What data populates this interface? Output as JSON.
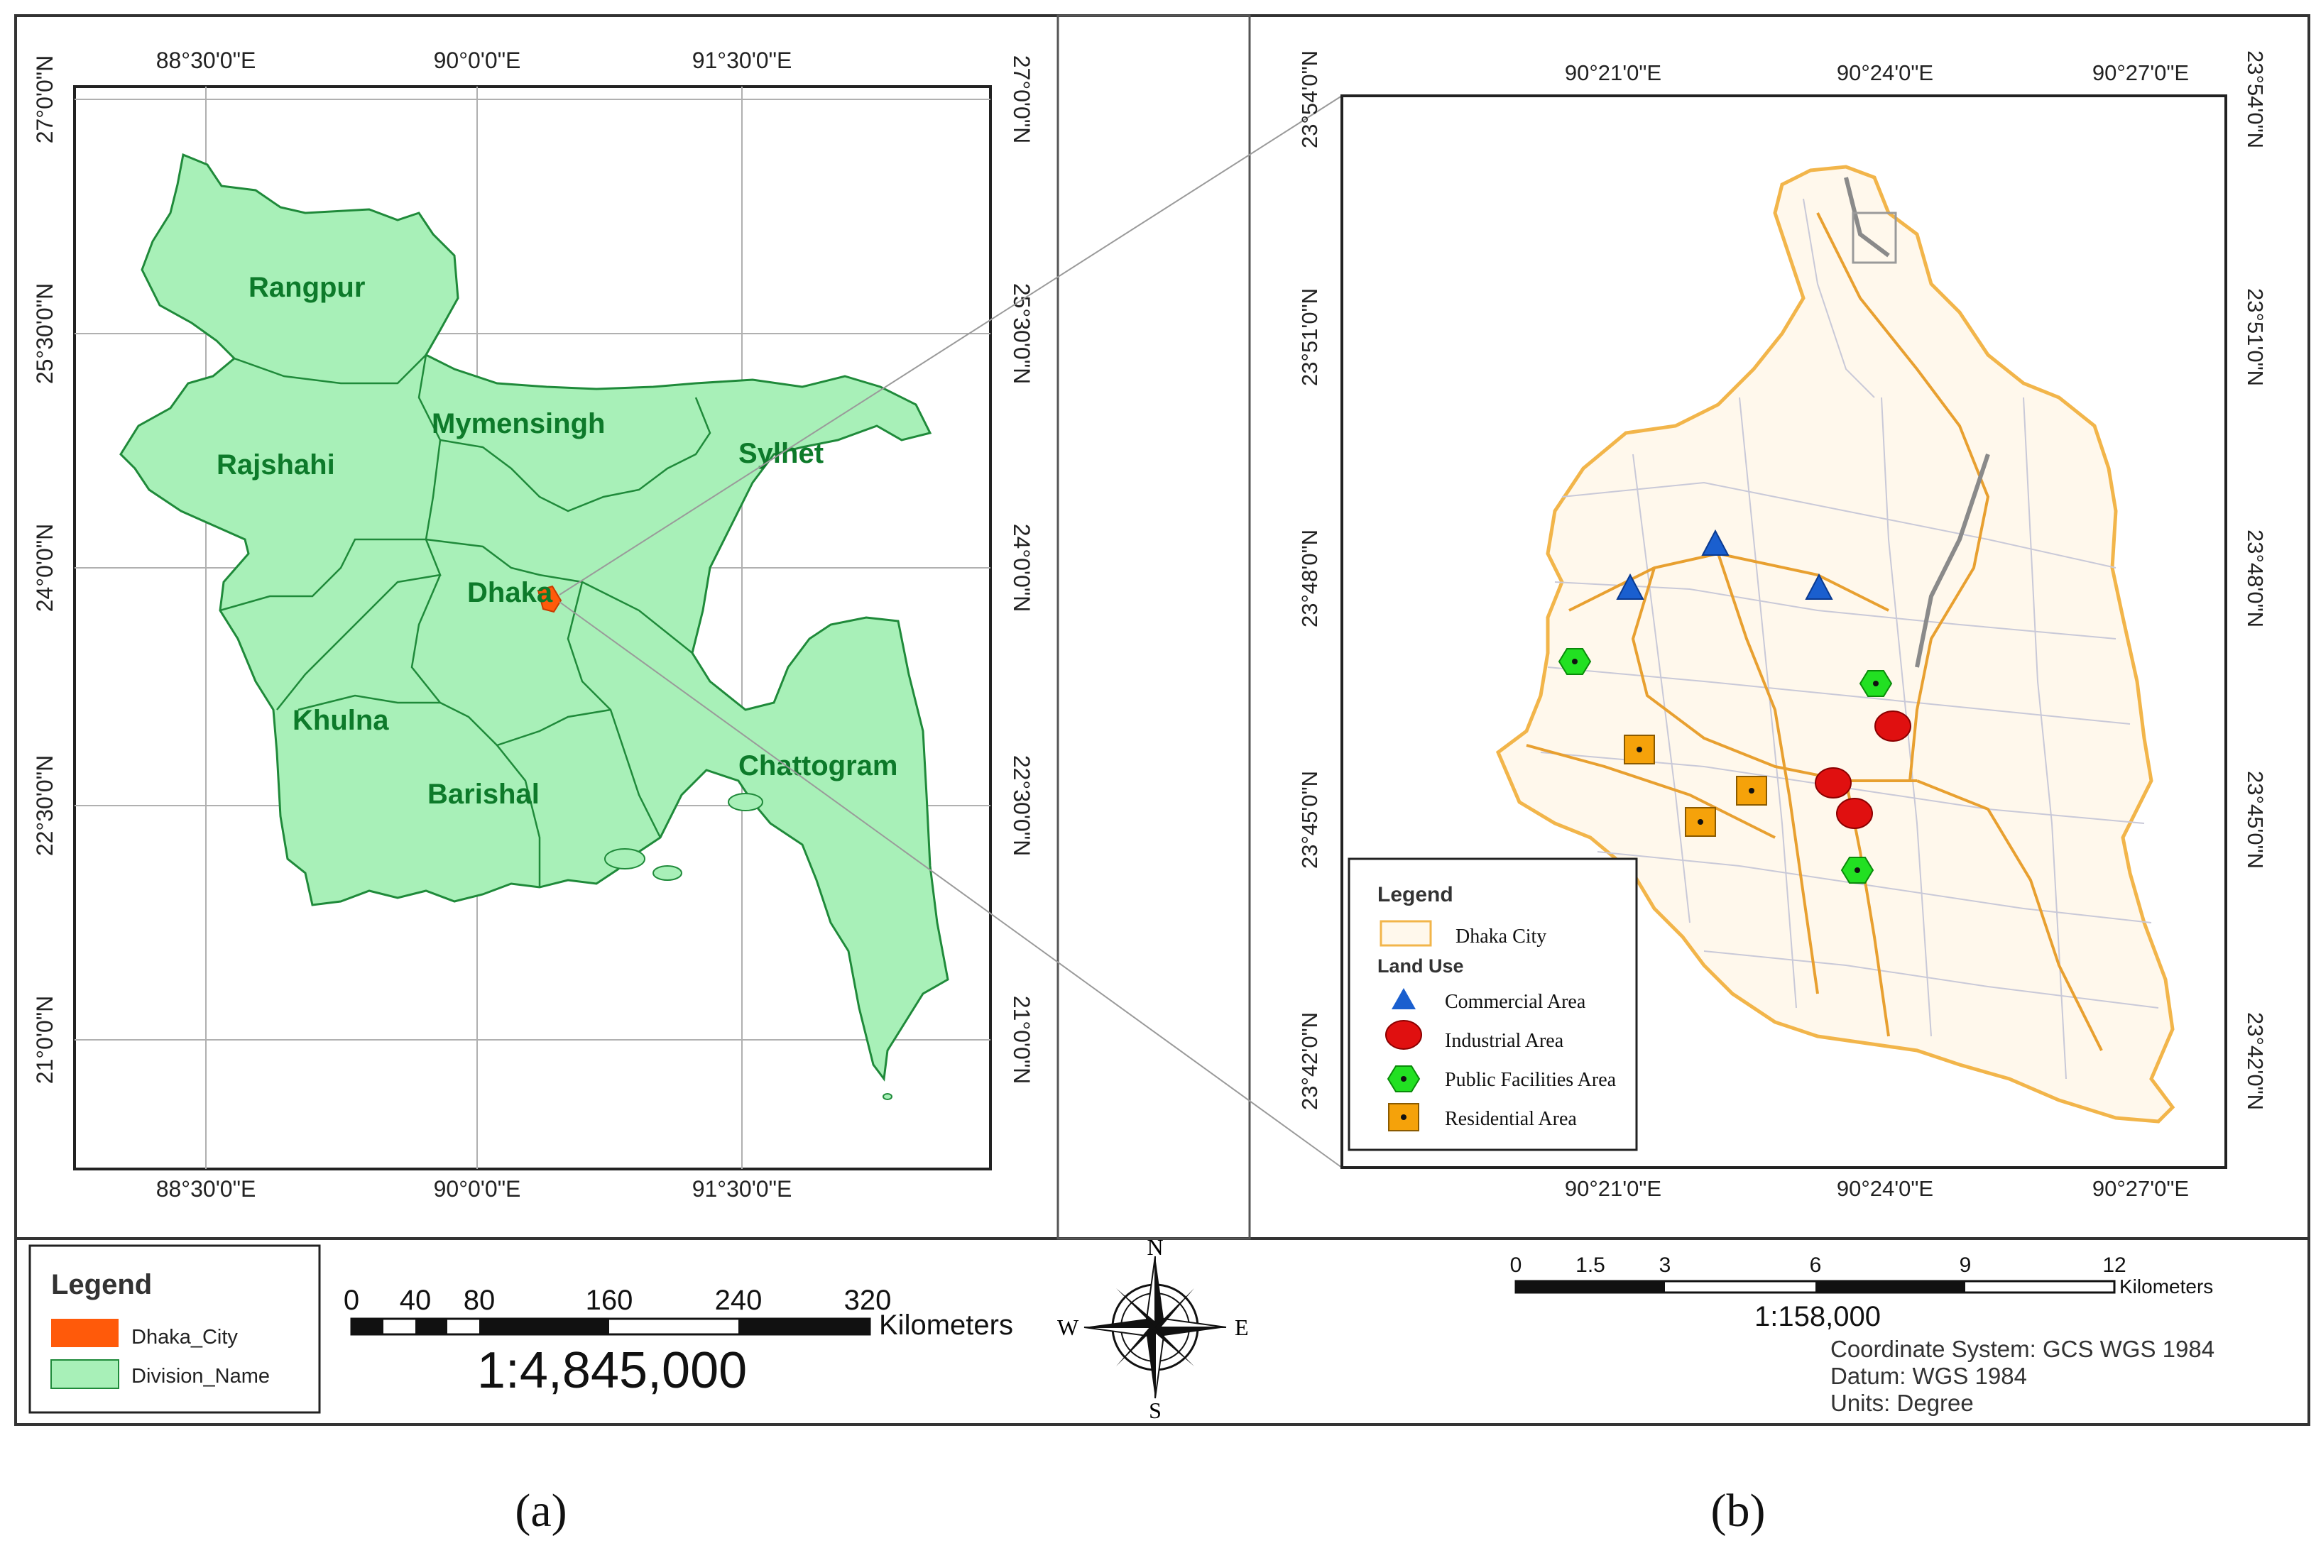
{
  "panel_a": {
    "top_lon_labels": [
      "88°30'0\"E",
      "90°0'0\"E",
      "91°30'0\"E"
    ],
    "bottom_lon_labels": [
      "88°30'0\"E",
      "90°0'0\"E",
      "91°30'0\"E"
    ],
    "left_lat_labels": [
      "27°0'0\"N",
      "25°30'0\"N",
      "24°0'0\"N",
      "22°30'0\"N",
      "21°0'0\"N"
    ],
    "right_lat_labels": [
      "27°0'0\"N",
      "25°30'0\"N",
      "24°0'0\"N",
      "22°30'0\"N",
      "21°0'0\"N"
    ],
    "divisions": [
      "Rangpur",
      "Mymensingh",
      "Rajshahi",
      "Sylhet",
      "Dhaka",
      "Khulna",
      "Barishal",
      "Chattogram"
    ],
    "legend": {
      "title": "Legend",
      "items": [
        {
          "label": "Dhaka_City",
          "color": "#ff5a0a"
        },
        {
          "label": "Division_Name",
          "color": "#a8f0b8"
        }
      ]
    },
    "scale_ticks": [
      "0",
      "40",
      "80",
      "160",
      "240",
      "320"
    ],
    "scale_unit": "Kilometers",
    "scale_ratio": "1:4,845,000",
    "caption": "(a)"
  },
  "compass": {
    "n": "N",
    "s": "S",
    "e": "E",
    "w": "W"
  },
  "panel_b": {
    "top_lon_labels": [
      "90°21'0\"E",
      "90°24'0\"E",
      "90°27'0\"E"
    ],
    "bottom_lon_labels": [
      "90°21'0\"E",
      "90°24'0\"E",
      "90°27'0\"E"
    ],
    "left_lat_labels": [
      "23°54'0\"N",
      "23°51'0\"N",
      "23°48'0\"N",
      "23°45'0\"N",
      "23°42'0\"N"
    ],
    "right_lat_labels": [
      "23°54'0\"N",
      "23°51'0\"N",
      "23°48'0\"N",
      "23°45'0\"N",
      "23°42'0\"N"
    ],
    "legend": {
      "title": "Legend",
      "city_label": "Dhaka City",
      "land_use_title": "Land Use",
      "items": [
        {
          "label": "Commercial Area",
          "symbol": "triangle",
          "color": "#1a5fcf"
        },
        {
          "label": "Industrial Area",
          "symbol": "circle",
          "color": "#e01010"
        },
        {
          "label": "Public Facilities Area",
          "symbol": "hexagon",
          "color": "#22e022"
        },
        {
          "label": "Residential Area",
          "symbol": "square",
          "color": "#f5a20a"
        }
      ]
    },
    "scale_ticks": [
      "0",
      "1.5",
      "3",
      "6",
      "9",
      "12"
    ],
    "scale_unit": "Kilometers",
    "scale_ratio": "1:158,000",
    "coord_info": [
      "Coordinate System: GCS WGS 1984",
      "Datum: WGS 1984",
      "Units: Degree"
    ],
    "caption": "(b)"
  },
  "colors": {
    "land": "#a8f0b8",
    "division_text": "#0d7a2a",
    "city_outline": "#f2b54a",
    "roads_dark": "#8a8a8a"
  }
}
